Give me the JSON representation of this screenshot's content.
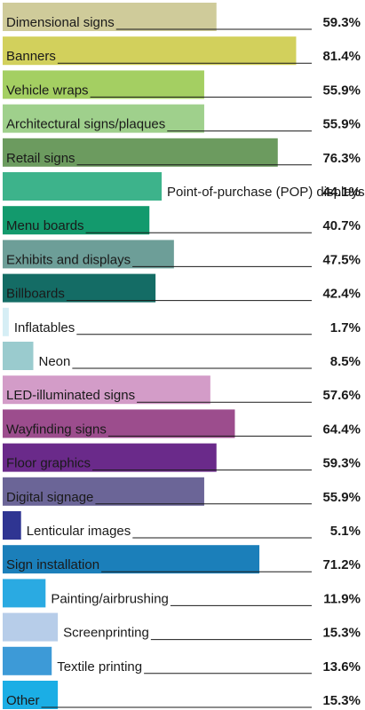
{
  "chart_data": {
    "type": "bar",
    "orientation": "horizontal",
    "xlim": [
      0,
      100
    ],
    "unit": "%",
    "grid": false,
    "categories": [
      "Dimensional signs",
      "Banners",
      "Vehicle wraps",
      "Architectural signs/plaques",
      "Retail signs",
      "Point-of-purchase (POP) displays",
      "Menu boards",
      "Exhibits and displays",
      "Billboards",
      "Inflatables",
      "Neon",
      "LED-illuminated signs",
      "Wayfinding signs",
      "Floor graphics",
      "Digital signage",
      "Lenticular images",
      "Sign installation",
      "Painting/airbrushing",
      "Screenprinting",
      "Textile printing",
      "Other"
    ],
    "values": [
      59.3,
      81.4,
      55.9,
      55.9,
      76.3,
      44.1,
      40.7,
      47.5,
      42.4,
      1.7,
      8.5,
      57.6,
      64.4,
      59.3,
      55.9,
      5.1,
      71.2,
      11.9,
      15.3,
      13.6,
      15.3
    ],
    "value_labels": [
      "59.3%",
      "81.4%",
      "55.9%",
      "55.9%",
      "76.3%",
      "44.1%",
      "40.7%",
      "47.5%",
      "42.4%",
      "1.7%",
      "8.5%",
      "57.6%",
      "64.4%",
      "59.3%",
      "55.9%",
      "5.1%",
      "71.2%",
      "11.9%",
      "15.3%",
      "13.6%",
      "15.3%"
    ],
    "colors": [
      "#cfcb9a",
      "#d2d05c",
      "#a4cf62",
      "#9fd08c",
      "#6c9b5f",
      "#3db38b",
      "#139a6d",
      "#6d9e98",
      "#146c65",
      "#d6eef5",
      "#9acbce",
      "#d39cc8",
      "#9c4d8d",
      "#6a2a8a",
      "#6b6597",
      "#2f3592",
      "#1b7fba",
      "#2aaae2",
      "#b7cde9",
      "#3d9ad7",
      "#1baee5"
    ],
    "label_colors": [
      "#1a1a1a",
      "#1a1a1a",
      "#ffffff",
      "#ffffff",
      "#ffffff",
      "#1a1a1a",
      "#ffffff",
      "#ffffff",
      "#ffffff",
      "#1a1a1a",
      "#1a1a1a",
      "#ffffff",
      "#ffffff",
      "#ffffff",
      "#ffffff",
      "#1a1a1a",
      "#ffffff",
      "#1a1a1a",
      "#1a1a1a",
      "#1a1a1a",
      "#ffffff"
    ]
  }
}
